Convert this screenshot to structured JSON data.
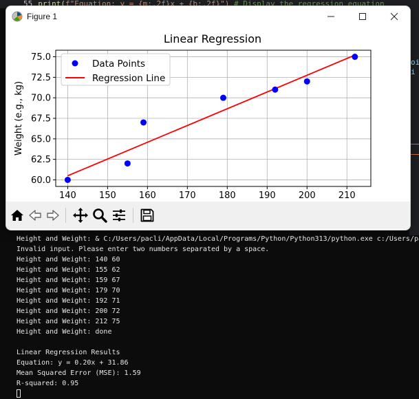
{
  "editor": {
    "line_number": "55",
    "code_fn": "print(",
    "code_str": "f\"Equation: y = {m:.2f}x + {b:.2f}\")",
    "code_comment": "# Display the regression equation",
    "right_snippet_1": "oi",
    "right_snippet_2": "i"
  },
  "window": {
    "title": "Figure 1",
    "minimize_glyph": "minimize",
    "maximize_glyph": "maximize",
    "close_glyph": "close"
  },
  "toolbar": {
    "icons": [
      "home-icon",
      "back-icon",
      "forward-icon",
      "pan-icon",
      "zoom-icon",
      "configure-subplots-icon",
      "save-icon"
    ]
  },
  "chart_data": {
    "type": "scatter",
    "title": "Linear Regression",
    "xlabel": "",
    "ylabel": "Weight (e.g., kg)",
    "xlim": [
      137,
      216
    ],
    "ylim": [
      59.2,
      75.8
    ],
    "xticks": [
      140,
      150,
      160,
      170,
      180,
      190,
      200,
      210
    ],
    "yticks": [
      60.0,
      62.5,
      65.0,
      67.5,
      70.0,
      72.5,
      75.0
    ],
    "ytick_labels": [
      "60.0",
      "62.5",
      "65.0",
      "67.5",
      "70.0",
      "72.5",
      "75.0"
    ],
    "grid": true,
    "legend_location": "top-left",
    "series": [
      {
        "name": "Data Points",
        "kind": "scatter",
        "color": "#0000ff",
        "x": [
          140,
          155,
          159,
          179,
          192,
          200,
          212
        ],
        "y": [
          60,
          62,
          67,
          70,
          71,
          72,
          75
        ]
      },
      {
        "name": "Regression Line",
        "kind": "line",
        "color": "#ff0000",
        "x": [
          140,
          212
        ],
        "y": [
          60.5,
          75.2
        ]
      }
    ]
  },
  "terminal": {
    "lines": [
      "Height and Weight: & C:/Users/pacli/AppData/Local/Programs/Python/Python313/python.exe c:/Users/pa",
      "Invalid input. Please enter two numbers separated by a space.",
      "Height and Weight: 140 60",
      "Height and Weight: 155 62",
      "Height and Weight: 159 67",
      "Height and Weight: 179 70",
      "Height and Weight: 192 71",
      "Height and Weight: 200 72",
      "Height and Weight: 212 75",
      "Height and Weight: done",
      "",
      "Linear Regression Results",
      "Equation: y = 0.20x + 31.86",
      "Mean Squared Error (MSE): 1.59",
      "R-squared: 0.95"
    ]
  }
}
